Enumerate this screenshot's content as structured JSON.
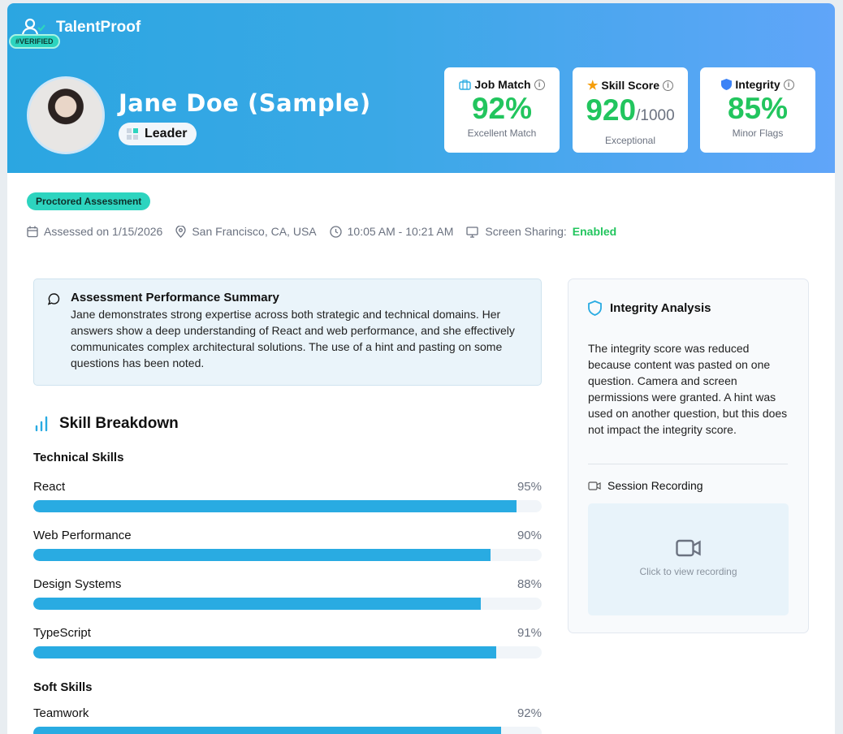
{
  "brand": {
    "name": "TalentProof",
    "verified": "#VERIFIED"
  },
  "candidate": {
    "name": "Jane Doe (Sample)",
    "role": "Leader"
  },
  "metrics": [
    {
      "label": "Job Match",
      "value": "92%",
      "suffix": "",
      "sub": "Excellent Match",
      "icon": "briefcase-icon"
    },
    {
      "label": "Skill Score",
      "value": "920",
      "suffix": "/1000",
      "sub": "Exceptional",
      "icon": "star-icon"
    },
    {
      "label": "Integrity",
      "value": "85%",
      "suffix": "",
      "sub": "Minor Flags",
      "icon": "shield-icon"
    }
  ],
  "badge": "Proctored Assessment",
  "meta": {
    "date": "Assessed on 1/15/2026",
    "location": "San Francisco, CA, USA",
    "time": "10:05 AM - 10:21 AM",
    "screen_label": "Screen Sharing:",
    "screen_value": "Enabled"
  },
  "summary": {
    "title": "Assessment Performance Summary",
    "text": "Jane demonstrates strong expertise across both strategic and technical domains. Her answers show a deep understanding of React and web performance, and she effectively communicates complex architectural solutions. The use of a hint and pasting on some questions has been noted."
  },
  "skills": {
    "title": "Skill Breakdown",
    "technical_title": "Technical Skills",
    "technical": [
      {
        "name": "React",
        "label": "95%",
        "value": 95
      },
      {
        "name": "Web Performance",
        "label": "90%",
        "value": 90
      },
      {
        "name": "Design Systems",
        "label": "88%",
        "value": 88
      },
      {
        "name": "TypeScript",
        "label": "91%",
        "value": 91
      }
    ],
    "soft_title": "Soft Skills",
    "soft": [
      {
        "name": "Teamwork",
        "label": "92%",
        "value": 92
      }
    ]
  },
  "integrity": {
    "title": "Integrity Analysis",
    "text": "The integrity score was reduced because content was pasted on one question. Camera and screen permissions were granted. A hint was used on another question, but this does not impact the integrity score.",
    "recording_title": "Session Recording",
    "recording_cta": "Click to view recording"
  },
  "colors": {
    "accent": "#29abe2",
    "success": "#22c55e",
    "teal": "#2dd4bf"
  }
}
